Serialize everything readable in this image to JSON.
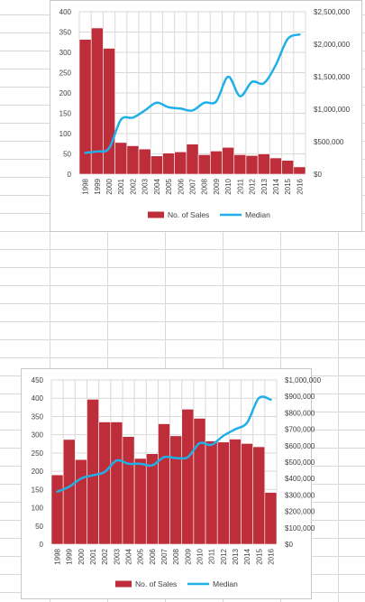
{
  "charts": [
    {
      "type": "bar",
      "categories": [
        "1998",
        "1999",
        "2000",
        "2001",
        "2002",
        "2003",
        "2004",
        "2005",
        "2006",
        "2007",
        "2008",
        "2009",
        "2010",
        "2011",
        "2012",
        "2013",
        "2014",
        "2015",
        "2016"
      ],
      "series": [
        {
          "name": "No. of Sales",
          "type": "bar",
          "axis": "left",
          "color": "#be2e3a",
          "values": [
            332,
            360,
            310,
            78,
            70,
            62,
            45,
            52,
            55,
            74,
            48,
            57,
            66,
            48,
            46,
            50,
            40,
            34,
            18
          ]
        },
        {
          "name": "Median",
          "type": "line",
          "axis": "right",
          "color": "#1fb0e8",
          "values": [
            330000,
            350000,
            400000,
            840000,
            870000,
            980000,
            1100000,
            1030000,
            1010000,
            980000,
            1100000,
            1120000,
            1500000,
            1200000,
            1420000,
            1400000,
            1680000,
            2080000,
            2150000
          ]
        }
      ],
      "y_left": {
        "min": 0,
        "max": 400,
        "step": 50,
        "ticks": [
          "0",
          "50",
          "100",
          "150",
          "200",
          "250",
          "300",
          "350",
          "400"
        ]
      },
      "y_right": {
        "min": 0,
        "max": 2500000,
        "step": 500000,
        "ticks": [
          "$0",
          "$500,000",
          "$1,000,000",
          "$1,500,000",
          "$2,000,000",
          "$2,500,000"
        ]
      },
      "grid": true,
      "legend": "bottom"
    },
    {
      "type": "bar",
      "categories": [
        "1998",
        "1999",
        "2000",
        "2001",
        "2002",
        "2003",
        "2004",
        "2005",
        "2006",
        "2007",
        "2008",
        "2009",
        "2010",
        "2011",
        "2012",
        "2013",
        "2014",
        "2015",
        "2016"
      ],
      "series": [
        {
          "name": "No. of Sales",
          "type": "bar",
          "axis": "left",
          "color": "#be2e3a",
          "values": [
            190,
            287,
            232,
            397,
            335,
            335,
            295,
            235,
            248,
            330,
            297,
            370,
            345,
            283,
            280,
            288,
            276,
            267,
            142
          ]
        },
        {
          "name": "Median",
          "type": "line",
          "axis": "right",
          "color": "#1fb0e8",
          "values": [
            320000,
            350000,
            400000,
            420000,
            440000,
            510000,
            490000,
            490000,
            480000,
            530000,
            525000,
            530000,
            615000,
            605000,
            660000,
            700000,
            740000,
            890000,
            880000
          ]
        }
      ],
      "y_left": {
        "min": 0,
        "max": 450,
        "step": 50,
        "ticks": [
          "0",
          "50",
          "100",
          "150",
          "200",
          "250",
          "300",
          "350",
          "400",
          "450"
        ]
      },
      "y_right": {
        "min": 0,
        "max": 1000000,
        "step": 100000,
        "ticks": [
          "$0",
          "$100,000",
          "$200,000",
          "$300,000",
          "$400,000",
          "$500,000",
          "$600,000",
          "$700,000",
          "$800,000",
          "$900,000",
          "$1,000,000"
        ]
      },
      "grid": true,
      "legend": "bottom"
    }
  ]
}
